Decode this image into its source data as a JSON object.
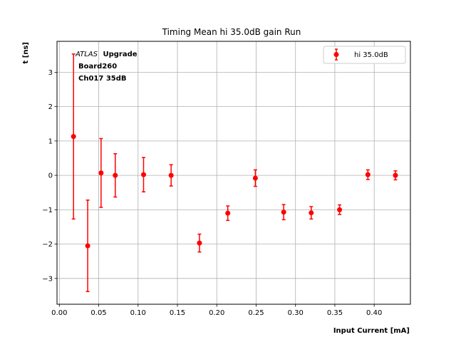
{
  "chart_data": {
    "type": "scatter",
    "title": "Timing Mean hi 35.0dB gain Run",
    "xlabel": "Input Current [mA]",
    "ylabel": "t [ns]",
    "xlim": [
      -0.003,
      0.446
    ],
    "ylim": [
      -3.75,
      3.9
    ],
    "x_ticks": [
      "0.00",
      "0.05",
      "0.10",
      "0.15",
      "0.20",
      "0.25",
      "0.30",
      "0.35",
      "0.40"
    ],
    "x_tick_values": [
      0.0,
      0.05,
      0.1,
      0.15,
      0.2,
      0.25,
      0.3,
      0.35,
      0.4
    ],
    "y_ticks": [
      "−3",
      "−2",
      "−1",
      "0",
      "1",
      "2",
      "3"
    ],
    "y_tick_values": [
      -3,
      -2,
      -1,
      0,
      1,
      2,
      3
    ],
    "grid": true,
    "legend_position": "top-right",
    "color": "#ff0000",
    "series": [
      {
        "name": "hi 35.0dB",
        "x": [
          0.018,
          0.036,
          0.053,
          0.071,
          0.107,
          0.142,
          0.178,
          0.214,
          0.249,
          0.285,
          0.32,
          0.356,
          0.392,
          0.427
        ],
        "y": [
          1.13,
          -2.05,
          0.07,
          0.0,
          0.02,
          0.0,
          -1.97,
          -1.1,
          -0.08,
          -1.07,
          -1.09,
          -1.0,
          0.02,
          0.0
        ],
        "yerr": [
          2.4,
          1.33,
          1.0,
          0.63,
          0.5,
          0.31,
          0.26,
          0.21,
          0.24,
          0.22,
          0.18,
          0.14,
          0.14,
          0.13
        ]
      }
    ],
    "annotation": {
      "atlas": "ATLAS",
      "upgrade": "Upgrade",
      "board": "Board260",
      "channel": "Ch017 35dB"
    }
  }
}
